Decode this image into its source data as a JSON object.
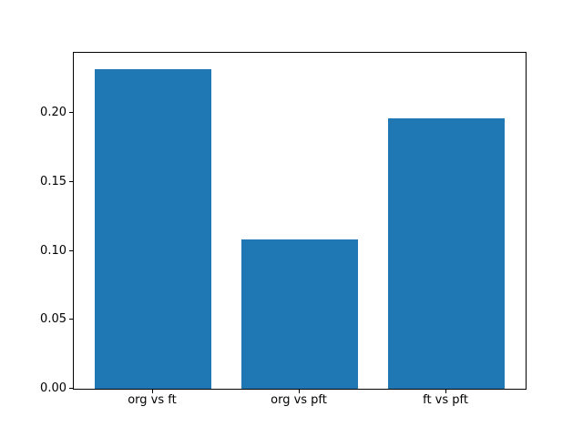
{
  "figure": {
    "background_color": "#ffffff",
    "title": ""
  },
  "chart_data": {
    "type": "bar",
    "categories": [
      "org vs ft",
      "org vs pft",
      "ft vs pft"
    ],
    "values": [
      0.232,
      0.108,
      0.196
    ],
    "title": "",
    "xlabel": "",
    "ylabel": "",
    "ylim": [
      0,
      0.2436
    ],
    "yticks": [
      0,
      0.05,
      0.1,
      0.15,
      0.2
    ],
    "ytick_labels": [
      "0.00",
      "0.05",
      "0.10",
      "0.15",
      "0.20"
    ],
    "xlim": [
      -0.54,
      2.54
    ],
    "bar_centers": [
      0,
      1,
      2
    ],
    "bar_width": 0.8,
    "bar_color": "#1f77b4",
    "axis_color": "#000000",
    "grid": false,
    "legend": null
  }
}
